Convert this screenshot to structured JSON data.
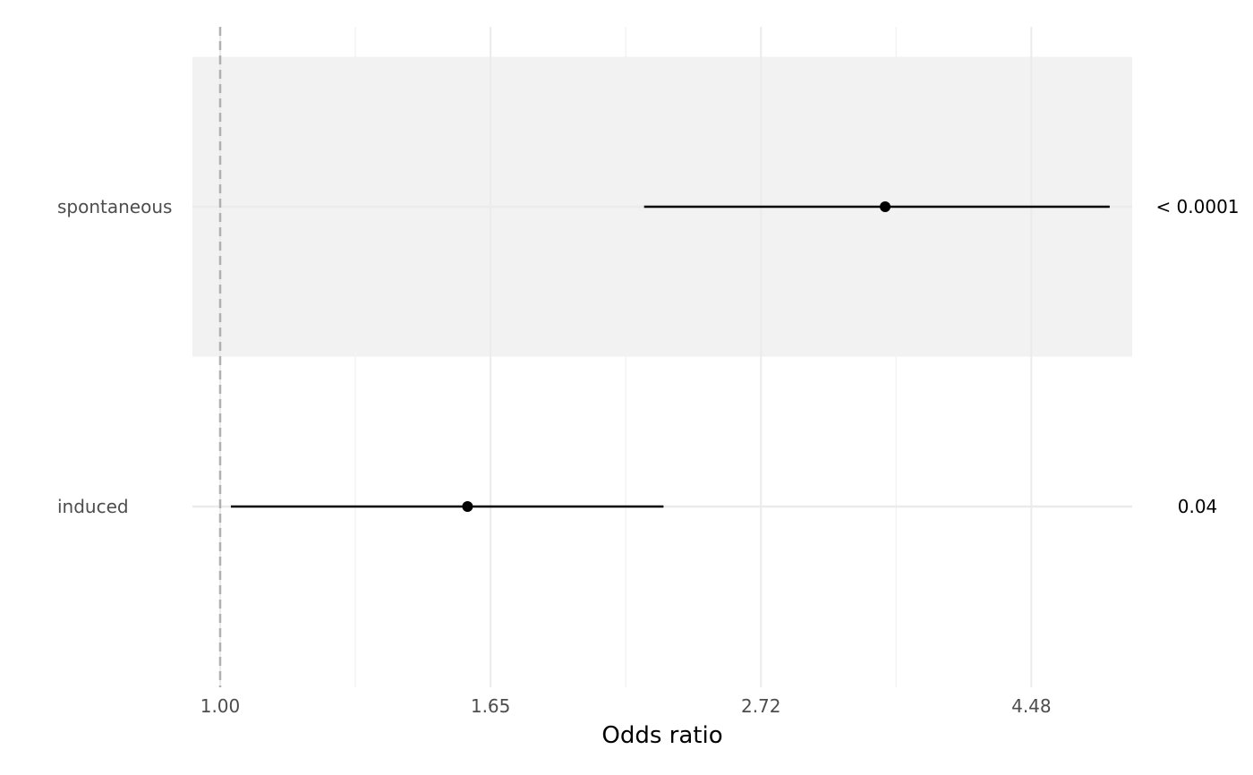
{
  "chart_data": {
    "type": "forest",
    "xlabel": "Odds ratio",
    "x_scale": "log",
    "xlim": [
      0.95,
      5.4
    ],
    "reference_line": 1.0,
    "x_ticks": [
      {
        "value": 1.0,
        "label": "1.00"
      },
      {
        "value": 1.6487,
        "label": "1.65"
      },
      {
        "value": 2.7183,
        "label": "2.72"
      },
      {
        "value": 4.4817,
        "label": "4.48"
      }
    ],
    "x_minor_gridlines": [
      1.284,
      2.117,
      3.4903
    ],
    "rows": [
      {
        "label": "spontaneous",
        "estimate": 3.42,
        "ci_low": 2.19,
        "ci_high": 5.18,
        "p_value": "< 0.0001",
        "shaded": true
      },
      {
        "label": "induced",
        "estimate": 1.58,
        "ci_low": 1.02,
        "ci_high": 2.27,
        "p_value": "0.04",
        "shaded": false
      }
    ],
    "colors": {
      "band": "#f2f2f2",
      "grid_major": "#ebebeb",
      "grid_minor": "#f3f3f3",
      "reference": "#b0b0b0",
      "mark": "#000000"
    }
  }
}
